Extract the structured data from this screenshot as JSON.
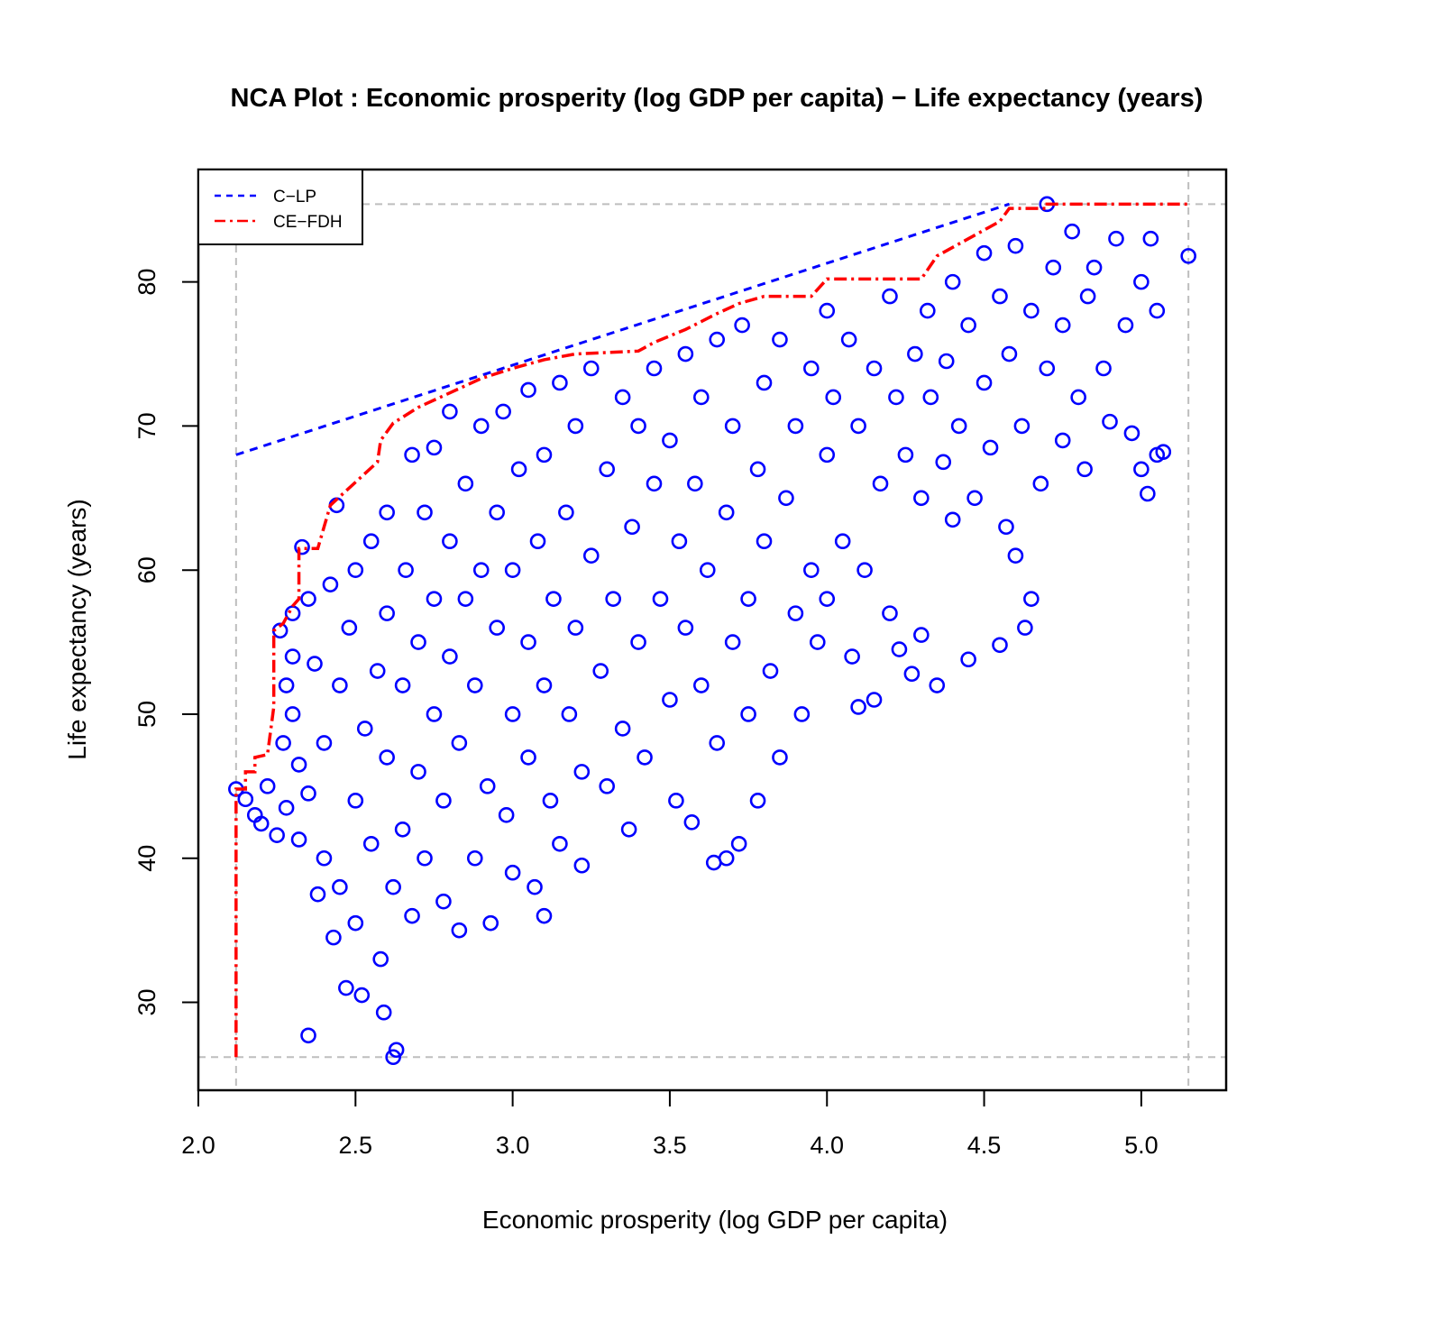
{
  "chart_data": {
    "type": "scatter",
    "title": "NCA Plot : Economic prosperity (log GDP per capita) − Life expectancy (years)",
    "xlabel": "Economic prosperity (log GDP per capita)",
    "ylabel": "Life expectancy (years)",
    "xlim": [
      2.0,
      5.27
    ],
    "ylim": [
      23.9,
      87.8
    ],
    "x_ticks": [
      2.0,
      2.5,
      3.0,
      3.5,
      4.0,
      4.5,
      5.0
    ],
    "x_tick_labels": [
      "2.0",
      "2.5",
      "3.0",
      "3.5",
      "4.0",
      "4.5",
      "5.0"
    ],
    "y_ticks": [
      30,
      40,
      50,
      60,
      70,
      80
    ],
    "y_tick_labels": [
      "30",
      "40",
      "50",
      "60",
      "70",
      "80"
    ],
    "grid": false,
    "legend": {
      "placement": "top-left",
      "entries": [
        "C−LP",
        "CE−FDH"
      ]
    },
    "reference_lines": {
      "x_min": 2.12,
      "x_max": 5.15,
      "y_min": 26.2,
      "y_max": 85.4,
      "color": "#bebebe"
    },
    "colors": {
      "points": "#0000ff",
      "clp": "#0000ff",
      "cefdh": "#ff0000"
    },
    "series": [
      {
        "name": "C−LP",
        "kind": "line",
        "points": [
          [
            2.12,
            68.0
          ],
          [
            4.58,
            85.4
          ]
        ]
      },
      {
        "name": "CE−FDH",
        "kind": "line",
        "points": [
          [
            2.12,
            26.2
          ],
          [
            2.12,
            44.8
          ],
          [
            2.15,
            44.8
          ],
          [
            2.15,
            46.0
          ],
          [
            2.18,
            46.0
          ],
          [
            2.18,
            47.0
          ],
          [
            2.22,
            47.2
          ],
          [
            2.24,
            50.5
          ],
          [
            2.24,
            55.8
          ],
          [
            2.27,
            56.3
          ],
          [
            2.3,
            57.5
          ],
          [
            2.32,
            58.0
          ],
          [
            2.32,
            61.5
          ],
          [
            2.38,
            61.5
          ],
          [
            2.4,
            63.0
          ],
          [
            2.42,
            64.5
          ],
          [
            2.47,
            65.5
          ],
          [
            2.52,
            66.5
          ],
          [
            2.57,
            67.5
          ],
          [
            2.58,
            69.0
          ],
          [
            2.62,
            70.2
          ],
          [
            2.7,
            71.3
          ],
          [
            2.8,
            72.3
          ],
          [
            2.9,
            73.3
          ],
          [
            3.0,
            74.0
          ],
          [
            3.1,
            74.6
          ],
          [
            3.2,
            75.0
          ],
          [
            3.4,
            75.2
          ],
          [
            3.45,
            75.8
          ],
          [
            3.55,
            76.7
          ],
          [
            3.65,
            77.8
          ],
          [
            3.72,
            78.5
          ],
          [
            3.8,
            79.0
          ],
          [
            3.95,
            79.0
          ],
          [
            4.0,
            80.2
          ],
          [
            4.3,
            80.2
          ],
          [
            4.35,
            81.8
          ],
          [
            4.45,
            83.0
          ],
          [
            4.55,
            84.2
          ],
          [
            4.58,
            85.1
          ],
          [
            4.7,
            85.1
          ],
          [
            4.7,
            85.4
          ],
          [
            5.15,
            85.4
          ]
        ]
      },
      {
        "kind": "scatter",
        "points": [
          [
            2.12,
            44.8
          ],
          [
            2.15,
            44.1
          ],
          [
            2.18,
            43.0
          ],
          [
            2.2,
            42.4
          ],
          [
            2.22,
            45.0
          ],
          [
            2.25,
            41.6
          ],
          [
            2.27,
            48.0
          ],
          [
            2.28,
            52.0
          ],
          [
            2.3,
            50.0
          ],
          [
            2.3,
            54.0
          ],
          [
            2.28,
            43.5
          ],
          [
            2.32,
            41.3
          ],
          [
            2.32,
            46.5
          ],
          [
            2.26,
            55.8
          ],
          [
            2.3,
            57.0
          ],
          [
            2.33,
            61.6
          ],
          [
            2.35,
            58.0
          ],
          [
            2.35,
            44.5
          ],
          [
            2.35,
            27.7
          ],
          [
            2.37,
            53.5
          ],
          [
            2.38,
            37.5
          ],
          [
            2.4,
            48.0
          ],
          [
            2.4,
            40.0
          ],
          [
            2.42,
            59.0
          ],
          [
            2.43,
            34.5
          ],
          [
            2.44,
            64.5
          ],
          [
            2.45,
            52.0
          ],
          [
            2.45,
            38.0
          ],
          [
            2.47,
            31.0
          ],
          [
            2.48,
            56.0
          ],
          [
            2.5,
            44.0
          ],
          [
            2.5,
            60.0
          ],
          [
            2.5,
            35.5
          ],
          [
            2.52,
            30.5
          ],
          [
            2.53,
            49.0
          ],
          [
            2.55,
            62.0
          ],
          [
            2.55,
            41.0
          ],
          [
            2.57,
            53.0
          ],
          [
            2.58,
            33.0
          ],
          [
            2.59,
            29.3
          ],
          [
            2.6,
            47.0
          ],
          [
            2.6,
            57.0
          ],
          [
            2.6,
            64.0
          ],
          [
            2.62,
            26.2
          ],
          [
            2.63,
            26.7
          ],
          [
            2.62,
            38.0
          ],
          [
            2.65,
            42.0
          ],
          [
            2.65,
            52.0
          ],
          [
            2.66,
            60.0
          ],
          [
            2.68,
            68.0
          ],
          [
            2.68,
            36.0
          ],
          [
            2.7,
            46.0
          ],
          [
            2.7,
            55.0
          ],
          [
            2.72,
            64.0
          ],
          [
            2.72,
            40.0
          ],
          [
            2.75,
            50.0
          ],
          [
            2.75,
            58.0
          ],
          [
            2.75,
            68.5
          ],
          [
            2.78,
            37.0
          ],
          [
            2.78,
            44.0
          ],
          [
            2.8,
            54.0
          ],
          [
            2.8,
            62.0
          ],
          [
            2.8,
            71.0
          ],
          [
            2.83,
            35.0
          ],
          [
            2.83,
            48.0
          ],
          [
            2.85,
            58.0
          ],
          [
            2.85,
            66.0
          ],
          [
            2.88,
            40.0
          ],
          [
            2.88,
            52.0
          ],
          [
            2.9,
            60.0
          ],
          [
            2.9,
            70.0
          ],
          [
            2.92,
            45.0
          ],
          [
            2.93,
            35.5
          ],
          [
            2.95,
            56.0
          ],
          [
            2.95,
            64.0
          ],
          [
            2.97,
            71.0
          ],
          [
            2.98,
            43.0
          ],
          [
            3.0,
            50.0
          ],
          [
            3.0,
            39.0
          ],
          [
            3.0,
            60.0
          ],
          [
            3.02,
            67.0
          ],
          [
            3.05,
            47.0
          ],
          [
            3.05,
            55.0
          ],
          [
            3.05,
            72.5
          ],
          [
            3.07,
            38.0
          ],
          [
            3.08,
            62.0
          ],
          [
            3.1,
            52.0
          ],
          [
            3.1,
            36.0
          ],
          [
            3.1,
            68.0
          ],
          [
            3.12,
            44.0
          ],
          [
            3.13,
            58.0
          ],
          [
            3.15,
            73.0
          ],
          [
            3.15,
            41.0
          ],
          [
            3.17,
            64.0
          ],
          [
            3.18,
            50.0
          ],
          [
            3.2,
            56.0
          ],
          [
            3.2,
            70.0
          ],
          [
            3.22,
            46.0
          ],
          [
            3.22,
            39.5
          ],
          [
            3.25,
            61.0
          ],
          [
            3.25,
            74.0
          ],
          [
            3.28,
            53.0
          ],
          [
            3.3,
            67.0
          ],
          [
            3.3,
            45.0
          ],
          [
            3.32,
            58.0
          ],
          [
            3.35,
            72.0
          ],
          [
            3.35,
            49.0
          ],
          [
            3.37,
            42.0
          ],
          [
            3.38,
            63.0
          ],
          [
            3.4,
            55.0
          ],
          [
            3.4,
            70.0
          ],
          [
            3.42,
            47.0
          ],
          [
            3.45,
            66.0
          ],
          [
            3.45,
            74.0
          ],
          [
            3.47,
            58.0
          ],
          [
            3.5,
            51.0
          ],
          [
            3.5,
            69.0
          ],
          [
            3.52,
            44.0
          ],
          [
            3.53,
            62.0
          ],
          [
            3.55,
            75.0
          ],
          [
            3.55,
            56.0
          ],
          [
            3.57,
            42.5
          ],
          [
            3.58,
            66.0
          ],
          [
            3.6,
            72.0
          ],
          [
            3.6,
            52.0
          ],
          [
            3.62,
            60.0
          ],
          [
            3.64,
            39.7
          ],
          [
            3.65,
            76.0
          ],
          [
            3.65,
            48.0
          ],
          [
            3.68,
            40.0
          ],
          [
            3.68,
            64.0
          ],
          [
            3.7,
            55.0
          ],
          [
            3.7,
            70.0
          ],
          [
            3.72,
            41.0
          ],
          [
            3.73,
            77.0
          ],
          [
            3.75,
            58.0
          ],
          [
            3.75,
            50.0
          ],
          [
            3.78,
            44.0
          ],
          [
            3.78,
            67.0
          ],
          [
            3.8,
            73.0
          ],
          [
            3.8,
            62.0
          ],
          [
            3.82,
            53.0
          ],
          [
            3.85,
            47.0
          ],
          [
            3.85,
            76.0
          ],
          [
            3.87,
            65.0
          ],
          [
            3.9,
            57.0
          ],
          [
            3.9,
            70.0
          ],
          [
            3.92,
            50.0
          ],
          [
            3.95,
            74.0
          ],
          [
            3.95,
            60.0
          ],
          [
            3.97,
            55.0
          ],
          [
            4.0,
            78.0
          ],
          [
            4.0,
            68.0
          ],
          [
            4.0,
            58.0
          ],
          [
            4.02,
            72.0
          ],
          [
            4.05,
            62.0
          ],
          [
            4.07,
            76.0
          ],
          [
            4.08,
            54.0
          ],
          [
            4.1,
            50.5
          ],
          [
            4.1,
            70.0
          ],
          [
            4.12,
            60.0
          ],
          [
            4.15,
            74.0
          ],
          [
            4.15,
            51.0
          ],
          [
            4.17,
            66.0
          ],
          [
            4.2,
            79.0
          ],
          [
            4.2,
            57.0
          ],
          [
            4.22,
            72.0
          ],
          [
            4.23,
            54.5
          ],
          [
            4.25,
            68.0
          ],
          [
            4.27,
            52.8
          ],
          [
            4.28,
            75.0
          ],
          [
            4.3,
            65.0
          ],
          [
            4.3,
            55.5
          ],
          [
            4.32,
            78.0
          ],
          [
            4.33,
            72.0
          ],
          [
            4.35,
            52.0
          ],
          [
            4.37,
            67.5
          ],
          [
            4.38,
            74.5
          ],
          [
            4.4,
            80.0
          ],
          [
            4.4,
            63.5
          ],
          [
            4.42,
            70.0
          ],
          [
            4.45,
            77.0
          ],
          [
            4.45,
            53.8
          ],
          [
            4.47,
            65.0
          ],
          [
            4.5,
            73.0
          ],
          [
            4.5,
            82.0
          ],
          [
            4.52,
            68.5
          ],
          [
            4.55,
            79.0
          ],
          [
            4.55,
            54.8
          ],
          [
            4.57,
            63.0
          ],
          [
            4.58,
            75.0
          ],
          [
            4.6,
            61.0
          ],
          [
            4.6,
            82.5
          ],
          [
            4.62,
            70.0
          ],
          [
            4.63,
            56.0
          ],
          [
            4.65,
            78.0
          ],
          [
            4.65,
            58.0
          ],
          [
            4.68,
            66.0
          ],
          [
            4.7,
            85.4
          ],
          [
            4.7,
            74.0
          ],
          [
            4.72,
            81.0
          ],
          [
            4.75,
            69.0
          ],
          [
            4.75,
            77.0
          ],
          [
            4.78,
            83.5
          ],
          [
            4.8,
            72.0
          ],
          [
            4.82,
            67.0
          ],
          [
            4.83,
            79.0
          ],
          [
            4.85,
            81.0
          ],
          [
            4.88,
            74.0
          ],
          [
            4.9,
            70.3
          ],
          [
            4.92,
            83.0
          ],
          [
            4.95,
            77.0
          ],
          [
            4.97,
            69.5
          ],
          [
            5.0,
            80.0
          ],
          [
            5.0,
            67.0
          ],
          [
            5.02,
            65.3
          ],
          [
            5.03,
            83.0
          ],
          [
            5.05,
            78.0
          ],
          [
            5.05,
            68.0
          ],
          [
            5.07,
            68.2
          ],
          [
            5.15,
            81.8
          ]
        ]
      }
    ]
  }
}
